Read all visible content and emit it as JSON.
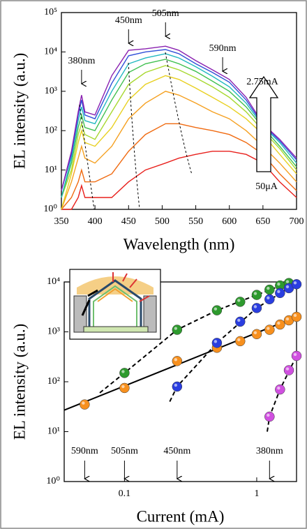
{
  "chart_data": [
    {
      "type": "line",
      "x_label": "Wavelength (nm)",
      "y_label": "EL intensity (a.u.)",
      "xlim": [
        350,
        700
      ],
      "xticks": [
        350,
        400,
        450,
        500,
        550,
        600,
        650,
        700
      ],
      "ylim": [
        1,
        100000
      ],
      "ylog": true,
      "yticks": [
        {
          "value": 1,
          "label": "10⁰"
        },
        {
          "value": 10,
          "label": "10¹"
        },
        {
          "value": 100,
          "label": "10²"
        },
        {
          "value": 1000,
          "label": "10³"
        },
        {
          "value": 10000,
          "label": "10⁴"
        },
        {
          "value": 100000,
          "label": "10⁵"
        }
      ],
      "x": [
        350,
        365,
        375,
        380,
        385,
        400,
        425,
        450,
        475,
        505,
        525,
        550,
        575,
        600,
        625,
        650,
        675,
        700
      ],
      "series": [
        {
          "color": "#e8201c",
          "values": [
            1,
            1,
            2,
            4,
            2,
            2,
            2,
            5,
            10,
            15,
            20,
            25,
            30,
            30,
            25,
            15,
            5,
            2
          ]
        },
        {
          "color": "#f06a10",
          "values": [
            1,
            2,
            5,
            10,
            5,
            5,
            8,
            30,
            80,
            150,
            150,
            120,
            100,
            80,
            50,
            25,
            8,
            3
          ]
        },
        {
          "color": "#f5a020",
          "values": [
            1,
            5,
            20,
            40,
            20,
            15,
            40,
            200,
            500,
            1000,
            800,
            500,
            300,
            200,
            100,
            40,
            15,
            5
          ]
        },
        {
          "color": "#e8d020",
          "values": [
            1,
            8,
            50,
            100,
            50,
            40,
            120,
            600,
            1500,
            2500,
            2000,
            1200,
            700,
            400,
            200,
            80,
            25,
            8
          ]
        },
        {
          "color": "#a8d830",
          "values": [
            2,
            10,
            80,
            150,
            80,
            60,
            300,
            1500,
            3000,
            4500,
            3500,
            2200,
            1300,
            700,
            300,
            100,
            35,
            10
          ]
        },
        {
          "color": "#40c050",
          "values": [
            2,
            15,
            120,
            250,
            120,
            100,
            600,
            3000,
            5000,
            6500,
            5000,
            3200,
            1800,
            1000,
            400,
            120,
            40,
            12
          ]
        },
        {
          "color": "#20b8c0",
          "values": [
            2,
            20,
            180,
            400,
            180,
            150,
            1000,
            5000,
            7000,
            9000,
            7000,
            4200,
            2400,
            1300,
            500,
            130,
            50,
            15
          ]
        },
        {
          "color": "#3050d8",
          "values": [
            3,
            25,
            250,
            600,
            250,
            200,
            1600,
            8000,
            10000,
            11500,
            9000,
            5000,
            3000,
            1700,
            600,
            140,
            55,
            18
          ]
        },
        {
          "color": "#8a20b0",
          "values": [
            3,
            30,
            300,
            800,
            300,
            250,
            2500,
            11000,
            12000,
            14000,
            11000,
            6000,
            3500,
            2000,
            700,
            150,
            60,
            20
          ]
        }
      ],
      "annotations": [
        {
          "text": "380nm",
          "x": 380
        },
        {
          "text": "450nm",
          "x": 450
        },
        {
          "text": "505nm",
          "x": 505
        },
        {
          "text": "590nm",
          "x": 590
        }
      ],
      "current_range": {
        "high": "2.75mA",
        "low": "50μA"
      }
    },
    {
      "type": "scatter",
      "x_label": "Current (mA)",
      "y_label": "EL intensity (a.u.)",
      "xlim": [
        0.035,
        2.0
      ],
      "xlog": true,
      "xticks": [
        0.1,
        1
      ],
      "ylim": [
        1,
        10000
      ],
      "ylog": true,
      "yticks": [
        {
          "value": 1,
          "label": "10⁰"
        },
        {
          "value": 10,
          "label": "10¹"
        },
        {
          "value": 100,
          "label": "10²"
        },
        {
          "value": 1000,
          "label": "10³"
        },
        {
          "value": 10000,
          "label": "10⁴"
        }
      ],
      "series": [
        {
          "name": "590nm",
          "color": "#f7901e",
          "x": [
            0.05,
            0.1,
            0.25,
            0.5,
            0.75,
            1,
            1.25,
            1.5,
            1.75,
            2
          ],
          "values": [
            35,
            75,
            260,
            480,
            650,
            900,
            1100,
            1400,
            1700,
            2000
          ]
        },
        {
          "name": "505nm",
          "color": "#2e9a2e",
          "x": [
            0.1,
            0.25,
            0.5,
            0.75,
            1,
            1.25,
            1.5,
            1.75
          ],
          "values": [
            150,
            1100,
            2700,
            4000,
            5500,
            7000,
            8500,
            9500
          ]
        },
        {
          "name": "450nm",
          "color": "#2a3ee0",
          "x": [
            0.25,
            0.5,
            0.75,
            1,
            1.25,
            1.5,
            1.75,
            2
          ],
          "values": [
            80,
            600,
            1600,
            3000,
            4500,
            6000,
            7500,
            9000
          ]
        },
        {
          "name": "380nm",
          "color": "#d050e0",
          "x": [
            1.25,
            1.5,
            1.75,
            2
          ],
          "values": [
            20,
            70,
            170,
            330
          ]
        }
      ],
      "fits": [
        {
          "style": "solid",
          "x": [
            0.035,
            2.0
          ],
          "values": [
            27,
            2000
          ]
        },
        {
          "style": "dashed",
          "x": [
            0.065,
            0.1,
            0.25,
            0.5,
            1,
            1.8
          ],
          "values": [
            60,
            150,
            1100,
            2700,
            5500,
            10000
          ]
        },
        {
          "style": "dashed",
          "x": [
            0.22,
            0.25,
            0.5,
            1,
            2
          ],
          "values": [
            40,
            80,
            600,
            3000,
            9500
          ]
        },
        {
          "style": "dashed",
          "x": [
            1.2,
            1.25,
            1.5,
            2
          ],
          "values": [
            10,
            20,
            70,
            330
          ]
        }
      ]
    }
  ]
}
